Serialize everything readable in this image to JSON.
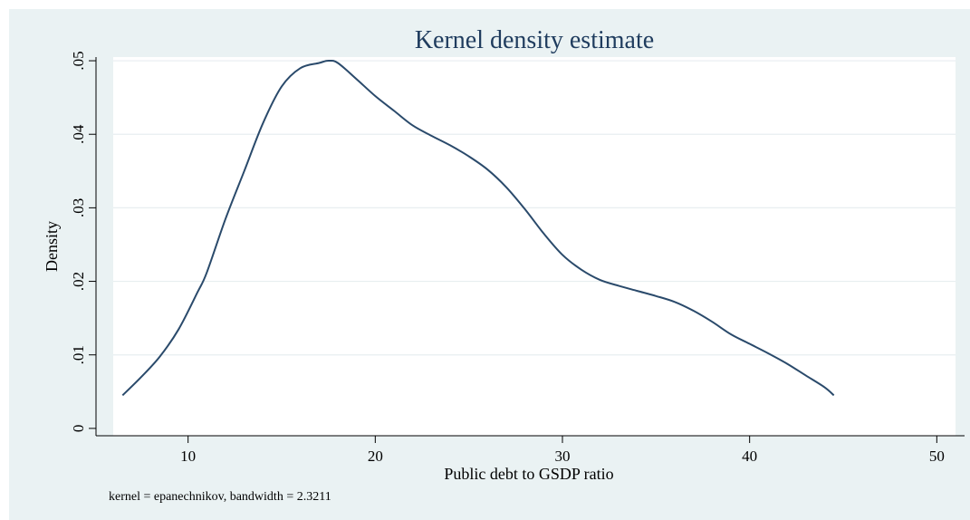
{
  "chart_data": {
    "type": "line",
    "title": "Kernel density estimate",
    "xlabel": "Public debt to GSDP ratio",
    "ylabel": "Density",
    "note": "kernel = epanechnikov, bandwidth = 2.3211",
    "xlim": [
      6,
      51
    ],
    "ylim": [
      -0.001,
      0.0505
    ],
    "xticks": [
      10,
      20,
      30,
      40,
      50
    ],
    "xtick_labels": [
      "10",
      "20",
      "30",
      "40",
      "50"
    ],
    "yticks": [
      0,
      0.01,
      0.02,
      0.03,
      0.04,
      0.05
    ],
    "ytick_labels": [
      "0",
      ".01",
      ".02",
      ".03",
      ".04",
      ".05"
    ],
    "grid": true,
    "colors": {
      "line": "#2a4a6b",
      "title": "#1f3c5e",
      "background": "#eaf2f3",
      "plot_area": "#ffffff",
      "grid": "#e8eef0"
    },
    "series": [
      {
        "x": [
          6.5,
          7.5,
          8.5,
          9.5,
          10.5,
          11.0,
          12.0,
          13.0,
          14.0,
          15.0,
          16.0,
          17.0,
          17.5,
          18.0,
          19.0,
          20.0,
          21.0,
          22.0,
          23.0,
          24.0,
          25.0,
          26.0,
          27.0,
          28.0,
          29.0,
          30.0,
          31.0,
          32.0,
          33.0,
          34.0,
          35.0,
          36.0,
          37.0,
          38.0,
          39.0,
          40.0,
          41.0,
          42.0,
          43.0,
          44.0,
          44.5
        ],
        "y": [
          0.0045,
          0.007,
          0.0098,
          0.0135,
          0.0185,
          0.0212,
          0.0285,
          0.035,
          0.0415,
          0.0465,
          0.049,
          0.0497,
          0.05,
          0.0497,
          0.0475,
          0.0452,
          0.0432,
          0.0412,
          0.0398,
          0.0385,
          0.037,
          0.0352,
          0.0328,
          0.0298,
          0.0265,
          0.0236,
          0.0216,
          0.0202,
          0.0194,
          0.0187,
          0.018,
          0.0172,
          0.016,
          0.0145,
          0.0128,
          0.0115,
          0.0102,
          0.0088,
          0.0072,
          0.0056,
          0.0045
        ]
      }
    ]
  }
}
